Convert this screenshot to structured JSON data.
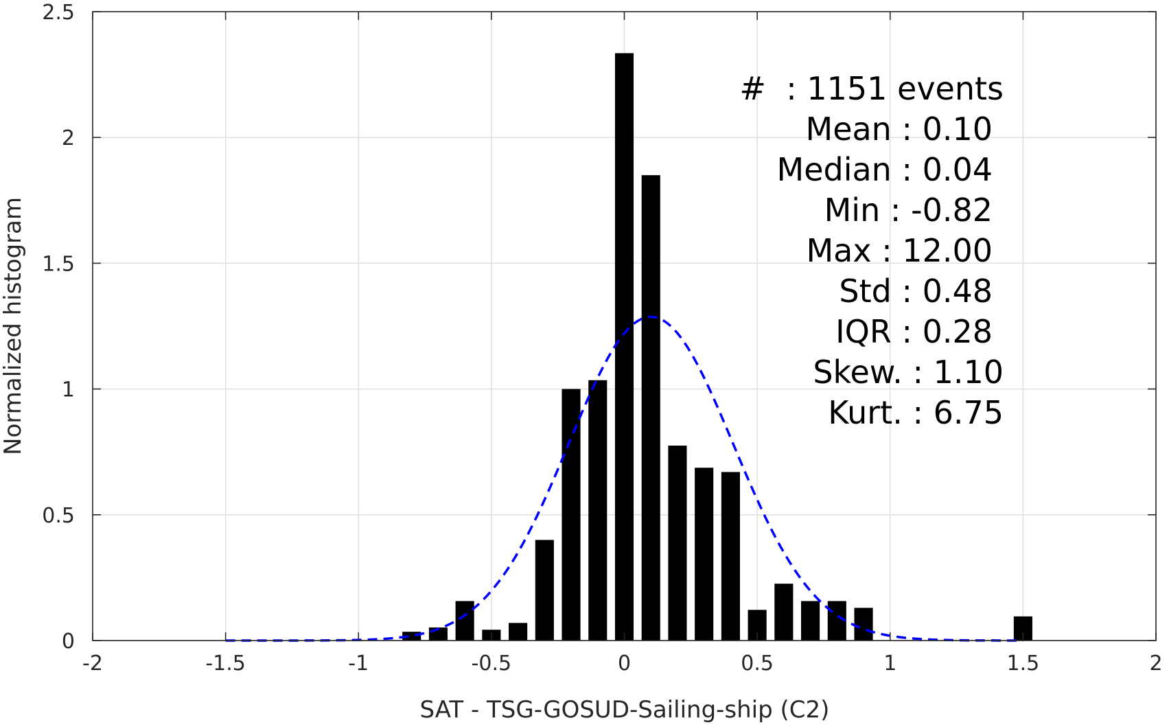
{
  "chart_data": {
    "type": "bar",
    "xlabel": "SAT - TSG-GOSUD-Sailing-ship (C2)",
    "ylabel": "Normalized histogram",
    "xlim": [
      -2,
      2
    ],
    "ylim": [
      0,
      2.5
    ],
    "grid": true,
    "x_ticks": [
      -2,
      -1.5,
      -1,
      -0.5,
      0,
      0.5,
      1,
      1.5,
      2
    ],
    "x_tick_labels": [
      "-2",
      "-1.5",
      "-1",
      "-0.5",
      "0",
      "0.5",
      "1",
      "1.5",
      "2"
    ],
    "y_ticks": [
      0,
      0.5,
      1,
      1.5,
      2,
      2.5
    ],
    "y_tick_labels": [
      "0",
      "0.5",
      "1",
      "1.5",
      "2",
      "2.5"
    ],
    "bar_color": "#000000",
    "bar_width": 0.07,
    "bins": {
      "x": [
        -0.8,
        -0.7,
        -0.6,
        -0.5,
        -0.4,
        -0.3,
        -0.2,
        -0.1,
        0.0,
        0.1,
        0.2,
        0.3,
        0.4,
        0.5,
        0.6,
        0.7,
        0.8,
        0.9,
        1.5
      ],
      "values": [
        0.035,
        0.052,
        0.157,
        0.043,
        0.07,
        0.4,
        1.0,
        1.035,
        2.335,
        1.85,
        0.775,
        0.687,
        0.67,
        0.122,
        0.226,
        0.157,
        0.157,
        0.13,
        0.096
      ]
    },
    "fit_curve": {
      "style": "dashed",
      "color": "#0000ff",
      "distribution": "normal",
      "mean": 0.1,
      "std": 0.31,
      "x_range": [
        -1.5,
        1.5
      ]
    },
    "annotation_lines": [
      "#  : 1151 events",
      "Mean : 0.10",
      "Median : 0.04",
      "Min : -0.82",
      "Max : 12.00",
      "Std : 0.48",
      "IQR : 0.28",
      "Skew. : 1.10",
      "Kurt. : 6.75"
    ]
  }
}
